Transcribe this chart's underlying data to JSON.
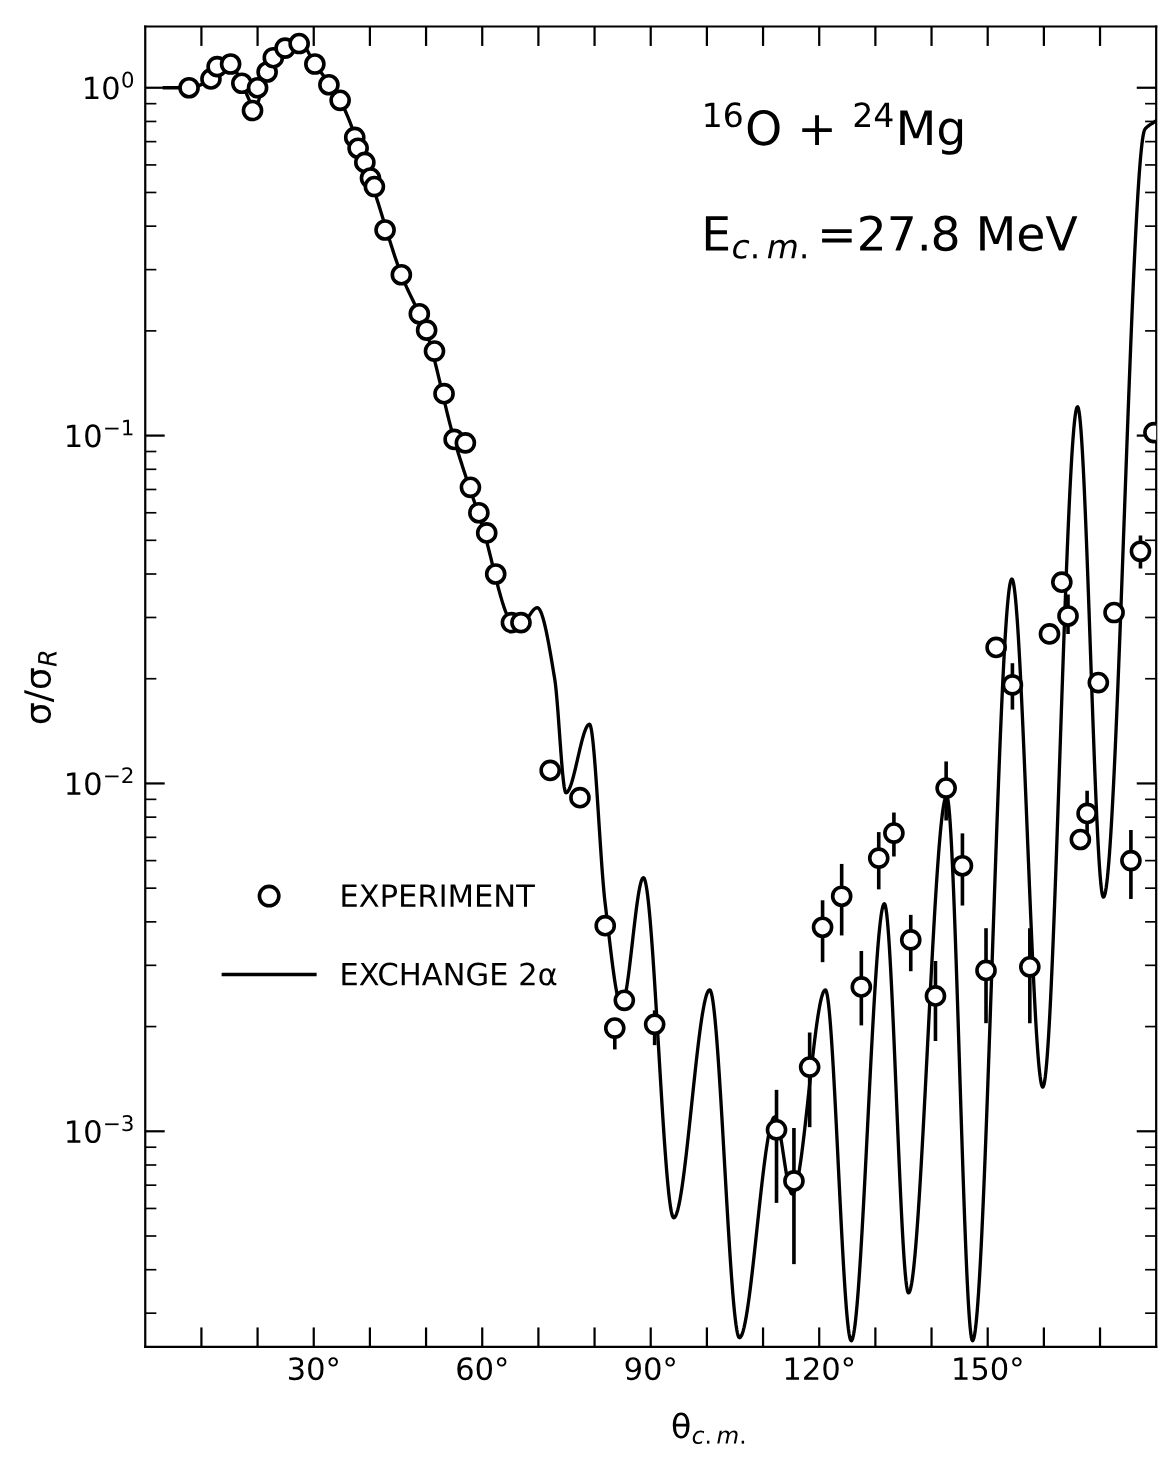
{
  "chart_data": {
    "type": "scatter",
    "xlabel": "θ$_{c.m.}$",
    "ylabel": "σ/σ$_{R}$",
    "log": "y",
    "legend": "left",
    "grid": false,
    "annotations": [
      "$^{16}$O + $^{24}$Mg",
      "E$_{c.m.}$=27.8 MeV"
    ],
    "xlim": [
      0,
      180
    ],
    "ylim": [
      0.00024,
      1.5
    ],
    "xticks": [
      {
        "value": 10,
        "label": null
      },
      {
        "value": 20,
        "label": null
      },
      {
        "value": 30,
        "label": "30°"
      },
      {
        "value": 40,
        "label": null
      },
      {
        "value": 50,
        "label": null
      },
      {
        "value": 60,
        "label": "60°"
      },
      {
        "value": 70,
        "label": null
      },
      {
        "value": 80,
        "label": null
      },
      {
        "value": 90,
        "label": "90°"
      },
      {
        "value": 100,
        "label": null
      },
      {
        "value": 110,
        "label": null
      },
      {
        "value": 120,
        "label": "120°"
      },
      {
        "value": 130,
        "label": null
      },
      {
        "value": 140,
        "label": null
      },
      {
        "value": 150,
        "label": "150°"
      },
      {
        "value": 160,
        "label": null
      },
      {
        "value": 170,
        "label": null
      }
    ],
    "yticks": [
      {
        "value": 0.001,
        "label": "10$^{−3}$"
      },
      {
        "value": 0.01,
        "label": "10$^{−2}$"
      },
      {
        "value": 0.1,
        "label": "10$^{−1}$"
      },
      {
        "value": 1,
        "label": "10$^{0}$"
      }
    ],
    "series": [
      {
        "name": "EXPERIMENT",
        "marker": "circle",
        "color": "#000000",
        "x": [
          7.8,
          11.7,
          12.8,
          15.2,
          17.2,
          19.1,
          20.0,
          21.7,
          22.8,
          24.9,
          27.4,
          30.2,
          32.7,
          34.7,
          37.3,
          37.9,
          39.1,
          40.1,
          40.8,
          42.7,
          45.6,
          48.8,
          50.1,
          51.5,
          53.2,
          55.0,
          57.0,
          57.9,
          59.4,
          60.8,
          62.4,
          65.2,
          66.9,
          72.1,
          77.4,
          81.9,
          83.6,
          85.3,
          90.7,
          112.4,
          115.5,
          118.3,
          120.6,
          124.0,
          127.5,
          130.6,
          133.3,
          136.3,
          140.7,
          142.6,
          145.5,
          149.7,
          151.5,
          154.4,
          157.5,
          161.0,
          163.2,
          164.3,
          166.5,
          167.7,
          169.7,
          172.5,
          175.5,
          177.2,
          179.6
        ],
        "values": [
          1.0,
          1.06,
          1.15,
          1.17,
          1.03,
          0.86,
          1.0,
          1.11,
          1.22,
          1.3,
          1.34,
          1.17,
          1.02,
          0.92,
          0.72,
          0.67,
          0.61,
          0.55,
          0.52,
          0.39,
          0.29,
          0.224,
          0.201,
          0.175,
          0.132,
          0.0975,
          0.0953,
          0.071,
          0.06,
          0.0525,
          0.04,
          0.029,
          0.029,
          0.0109,
          0.0091,
          0.0039,
          0.00198,
          0.00238,
          0.00203,
          0.00101,
          0.00072,
          0.00153,
          0.00386,
          0.00474,
          0.0026,
          0.0061,
          0.0072,
          0.00355,
          0.00245,
          0.0097,
          0.0058,
          0.0029,
          0.0246,
          0.0192,
          0.00297,
          0.0269,
          0.0379,
          0.0303,
          0.0069,
          0.0082,
          0.0195,
          0.031,
          0.006,
          0.0465,
          0.102
        ],
        "errors": [
          null,
          null,
          null,
          null,
          null,
          null,
          null,
          null,
          null,
          null,
          null,
          null,
          null,
          null,
          null,
          null,
          null,
          null,
          null,
          null,
          null,
          null,
          null,
          null,
          null,
          null,
          null,
          null,
          null,
          null,
          null,
          null,
          null,
          null,
          null,
          null,
          [
            0.00174,
            0.00207
          ],
          null,
          [
            0.00179,
            0.0022
          ],
          [
            0.00063,
            0.0013
          ],
          [
            0.00042,
            0.00101
          ],
          [
            0.00104,
            0.0019
          ],
          [
            0.0031,
            0.00456
          ],
          [
            0.0037,
            0.0058
          ],
          [
            0.00204,
            0.00326
          ],
          [
            0.00502,
            0.00716
          ],
          [
            0.00624,
            0.00815
          ],
          [
            0.00292,
            0.00414
          ],
          [
            0.00184,
            0.00305
          ],
          [
            0.00792,
            0.01143
          ],
          [
            0.00451,
            0.0071
          ],
          [
            0.00207,
            0.00379
          ],
          null,
          [
            0.0165,
            0.0219
          ],
          [
            0.00207,
            0.00379
          ],
          null,
          null,
          [
            0.0272,
            0.0345
          ],
          null,
          [
            0.00726,
            0.00942
          ],
          null,
          null,
          [
            0.00471,
            0.00726
          ],
          [
            0.042,
            0.051
          ],
          null
        ]
      },
      {
        "name": "EXCHANGE 2α",
        "type": "line",
        "line_style": "solid",
        "marker": "none",
        "color": "#000000",
        "x": [
          3.4,
          7.8,
          11.7,
          13.5,
          15.2,
          17.2,
          19.5,
          21.7,
          24.9,
          27.4,
          30.2,
          34.7,
          40.0,
          45.6,
          50.0,
          55.0,
          60.0,
          65.2,
          66.5,
          69.8,
          72.9,
          74.9,
          79.1,
          81.9,
          84.8,
          88.7,
          94.1,
          100.5,
          105.8,
          112.1,
          115.2,
          121.1,
          125.7,
          131.6,
          135.9,
          142.7,
          147.3,
          154.3,
          159.8,
          166.0,
          170.6,
          178.0,
          179.8
        ],
        "values": [
          1.0,
          1.0,
          1.06,
          1.16,
          1.17,
          1.03,
          0.88,
          1.11,
          1.3,
          1.36,
          1.17,
          0.92,
          0.55,
          0.29,
          0.2,
          0.0975,
          0.055,
          0.029,
          0.028,
          0.032,
          0.02,
          0.0094,
          0.0148,
          0.0045,
          0.0023,
          0.00536,
          0.000564,
          0.00255,
          0.000255,
          0.0011,
          0.00066,
          0.00255,
          0.00025,
          0.00451,
          0.000343,
          0.0092,
          0.00025,
          0.0387,
          0.00134,
          0.121,
          0.00471,
          0.76,
          0.8
        ]
      }
    ]
  }
}
